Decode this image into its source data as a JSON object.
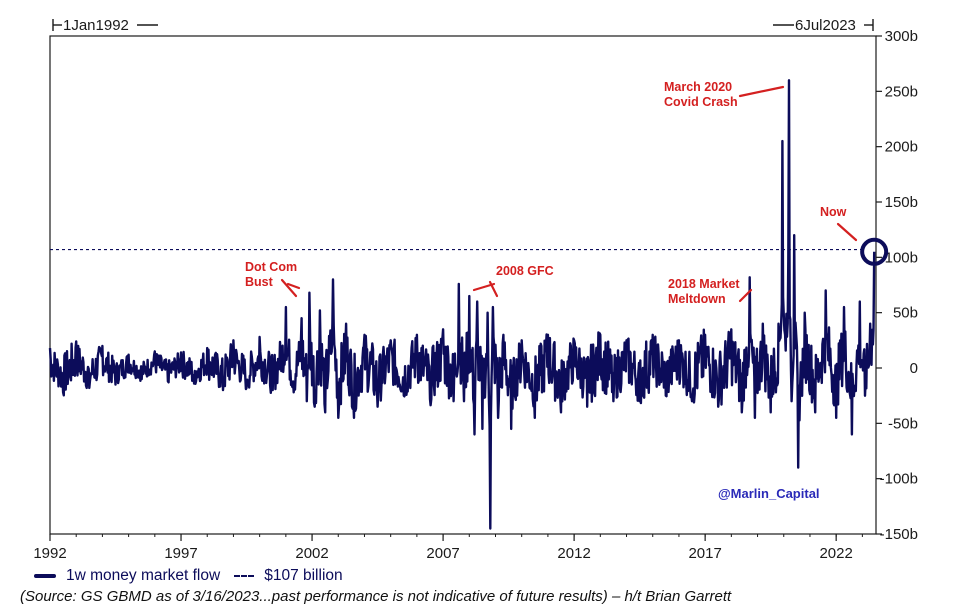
{
  "chart_data": {
    "type": "line",
    "date_range": {
      "start": "1Jan1992",
      "end": "6Jul2023"
    },
    "x_ticks": [
      "1992",
      "1997",
      "2002",
      "2007",
      "2012",
      "2017",
      "2022"
    ],
    "y_ticks": [
      "300b",
      "250b",
      "200b",
      "150b",
      "100b",
      "50b",
      "0",
      "-50b",
      "-100b",
      "-150b"
    ],
    "ylim": [
      -150,
      300
    ],
    "xlim": [
      1992,
      2023.52
    ],
    "grid": false,
    "y_axis_side": "right",
    "series": [
      {
        "name": "1w money market flow",
        "color": "#0c0c5a",
        "style": "solid",
        "points": [
          [
            1992.0,
            18
          ],
          [
            1992.5,
            -22
          ],
          [
            1993.0,
            24
          ],
          [
            1993.5,
            -18
          ],
          [
            1994.0,
            20
          ],
          [
            1994.5,
            -15
          ],
          [
            1995.0,
            12
          ],
          [
            1995.5,
            -10
          ],
          [
            1996.0,
            15
          ],
          [
            1996.5,
            -12
          ],
          [
            1997.0,
            14
          ],
          [
            1997.5,
            -14
          ],
          [
            1998.0,
            18
          ],
          [
            1998.6,
            -20
          ],
          [
            1999.0,
            25
          ],
          [
            1999.5,
            -18
          ],
          [
            2000.0,
            28
          ],
          [
            2000.5,
            -20
          ],
          [
            2001.0,
            55
          ],
          [
            2001.3,
            -22
          ],
          [
            2001.6,
            45
          ],
          [
            2001.8,
            -30
          ],
          [
            2001.9,
            68
          ],
          [
            2002.1,
            -35
          ],
          [
            2002.3,
            52
          ],
          [
            2002.5,
            -40
          ],
          [
            2002.8,
            80
          ],
          [
            2003.0,
            -45
          ],
          [
            2003.3,
            40
          ],
          [
            2003.6,
            -45
          ],
          [
            2004.0,
            30
          ],
          [
            2004.5,
            -35
          ],
          [
            2005.0,
            25
          ],
          [
            2005.5,
            -25
          ],
          [
            2006.0,
            30
          ],
          [
            2006.5,
            -28
          ],
          [
            2007.0,
            35
          ],
          [
            2007.4,
            -30
          ],
          [
            2007.6,
            76
          ],
          [
            2007.8,
            -30
          ],
          [
            2008.0,
            65
          ],
          [
            2008.2,
            -60
          ],
          [
            2008.3,
            60
          ],
          [
            2008.5,
            -55
          ],
          [
            2008.7,
            50
          ],
          [
            2008.8,
            -145
          ],
          [
            2008.9,
            55
          ],
          [
            2009.1,
            -45
          ],
          [
            2009.3,
            30
          ],
          [
            2009.6,
            -55
          ],
          [
            2010.0,
            25
          ],
          [
            2010.5,
            -45
          ],
          [
            2011.0,
            30
          ],
          [
            2011.5,
            -40
          ],
          [
            2012.0,
            25
          ],
          [
            2012.5,
            -35
          ],
          [
            2013.0,
            30
          ],
          [
            2013.5,
            -30
          ],
          [
            2014.0,
            25
          ],
          [
            2014.5,
            -30
          ],
          [
            2015.0,
            30
          ],
          [
            2015.5,
            -25
          ],
          [
            2016.0,
            25
          ],
          [
            2016.5,
            -30
          ],
          [
            2017.0,
            30
          ],
          [
            2017.5,
            -35
          ],
          [
            2018.0,
            35
          ],
          [
            2018.4,
            -40
          ],
          [
            2018.7,
            82
          ],
          [
            2018.9,
            -45
          ],
          [
            2019.2,
            40
          ],
          [
            2019.5,
            -40
          ],
          [
            2019.8,
            40
          ],
          [
            2019.95,
            205
          ],
          [
            2020.05,
            30
          ],
          [
            2020.2,
            260
          ],
          [
            2020.3,
            -30
          ],
          [
            2020.4,
            120
          ],
          [
            2020.55,
            -90
          ],
          [
            2020.8,
            50
          ],
          [
            2021.2,
            -40
          ],
          [
            2021.6,
            70
          ],
          [
            2022.0,
            -45
          ],
          [
            2022.3,
            55
          ],
          [
            2022.6,
            -60
          ],
          [
            2022.9,
            60
          ],
          [
            2023.1,
            -25
          ],
          [
            2023.3,
            40
          ],
          [
            2023.45,
            105
          ]
        ]
      },
      {
        "name": "$107 billion",
        "color": "#0c0c5a",
        "style": "dashed",
        "value": 107
      }
    ],
    "annotations": [
      {
        "label": "March 2020\nCovid Crash",
        "x": 2020.2,
        "y": 260
      },
      {
        "label": "Now",
        "x": 2023.45,
        "y": 105
      },
      {
        "label": "Dot Com\nBust",
        "x": 2001.9,
        "y": 68
      },
      {
        "label": "2008 GFC",
        "x": 2008.2,
        "y": 60
      },
      {
        "label": "2018 Market\nMeltdown",
        "x": 2018.7,
        "y": 82
      }
    ],
    "watermark": "@Marlin_Capital"
  },
  "legend": {
    "series_label": "1w money market flow",
    "threshold_label": "$107 billion"
  },
  "source_text": "(Source: GS GBMD as of 3/16/2023...past performance is not indicative of future results) – h/t Brian Garrett"
}
